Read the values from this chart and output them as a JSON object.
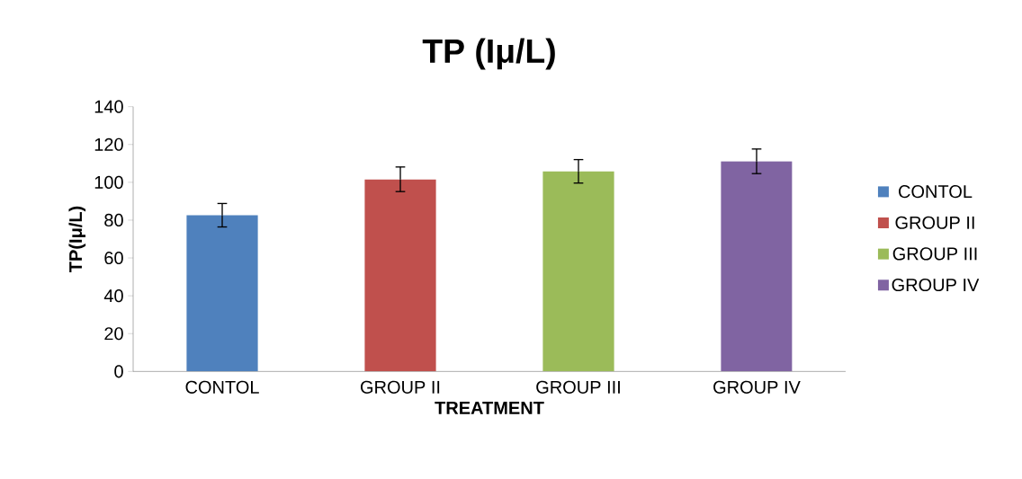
{
  "chart_data": {
    "type": "bar",
    "title": "TP (Iμ/L)",
    "xlabel": "TREATMENT",
    "ylabel": "TP(Iμ/L)",
    "categories": [
      "CONTOL",
      "GROUP II",
      "GROUP III",
      "GROUP IV"
    ],
    "series": [
      {
        "name": "CONTOL",
        "color": "#4f81bd",
        "values": [
          82.6,
          null,
          null,
          null
        ],
        "errors": [
          6.2,
          null,
          null,
          null
        ]
      },
      {
        "name": "GROUP II",
        "color": "#c0504d",
        "values": [
          null,
          101.6,
          null,
          null
        ],
        "errors": [
          null,
          6.5,
          null,
          null
        ]
      },
      {
        "name": "GROUP III",
        "color": "#9bbb59",
        "values": [
          null,
          null,
          105.8,
          null
        ],
        "errors": [
          null,
          null,
          6.2,
          null
        ]
      },
      {
        "name": "GROUP IV",
        "color": "#8064a2",
        "values": [
          null,
          null,
          null,
          111.1
        ],
        "errors": [
          null,
          null,
          null,
          6.5
        ]
      }
    ],
    "ylim": [
      0,
      140
    ],
    "yticks": [
      0,
      20,
      40,
      60,
      80,
      100,
      120,
      140
    ],
    "grid": false,
    "legend": "right"
  }
}
